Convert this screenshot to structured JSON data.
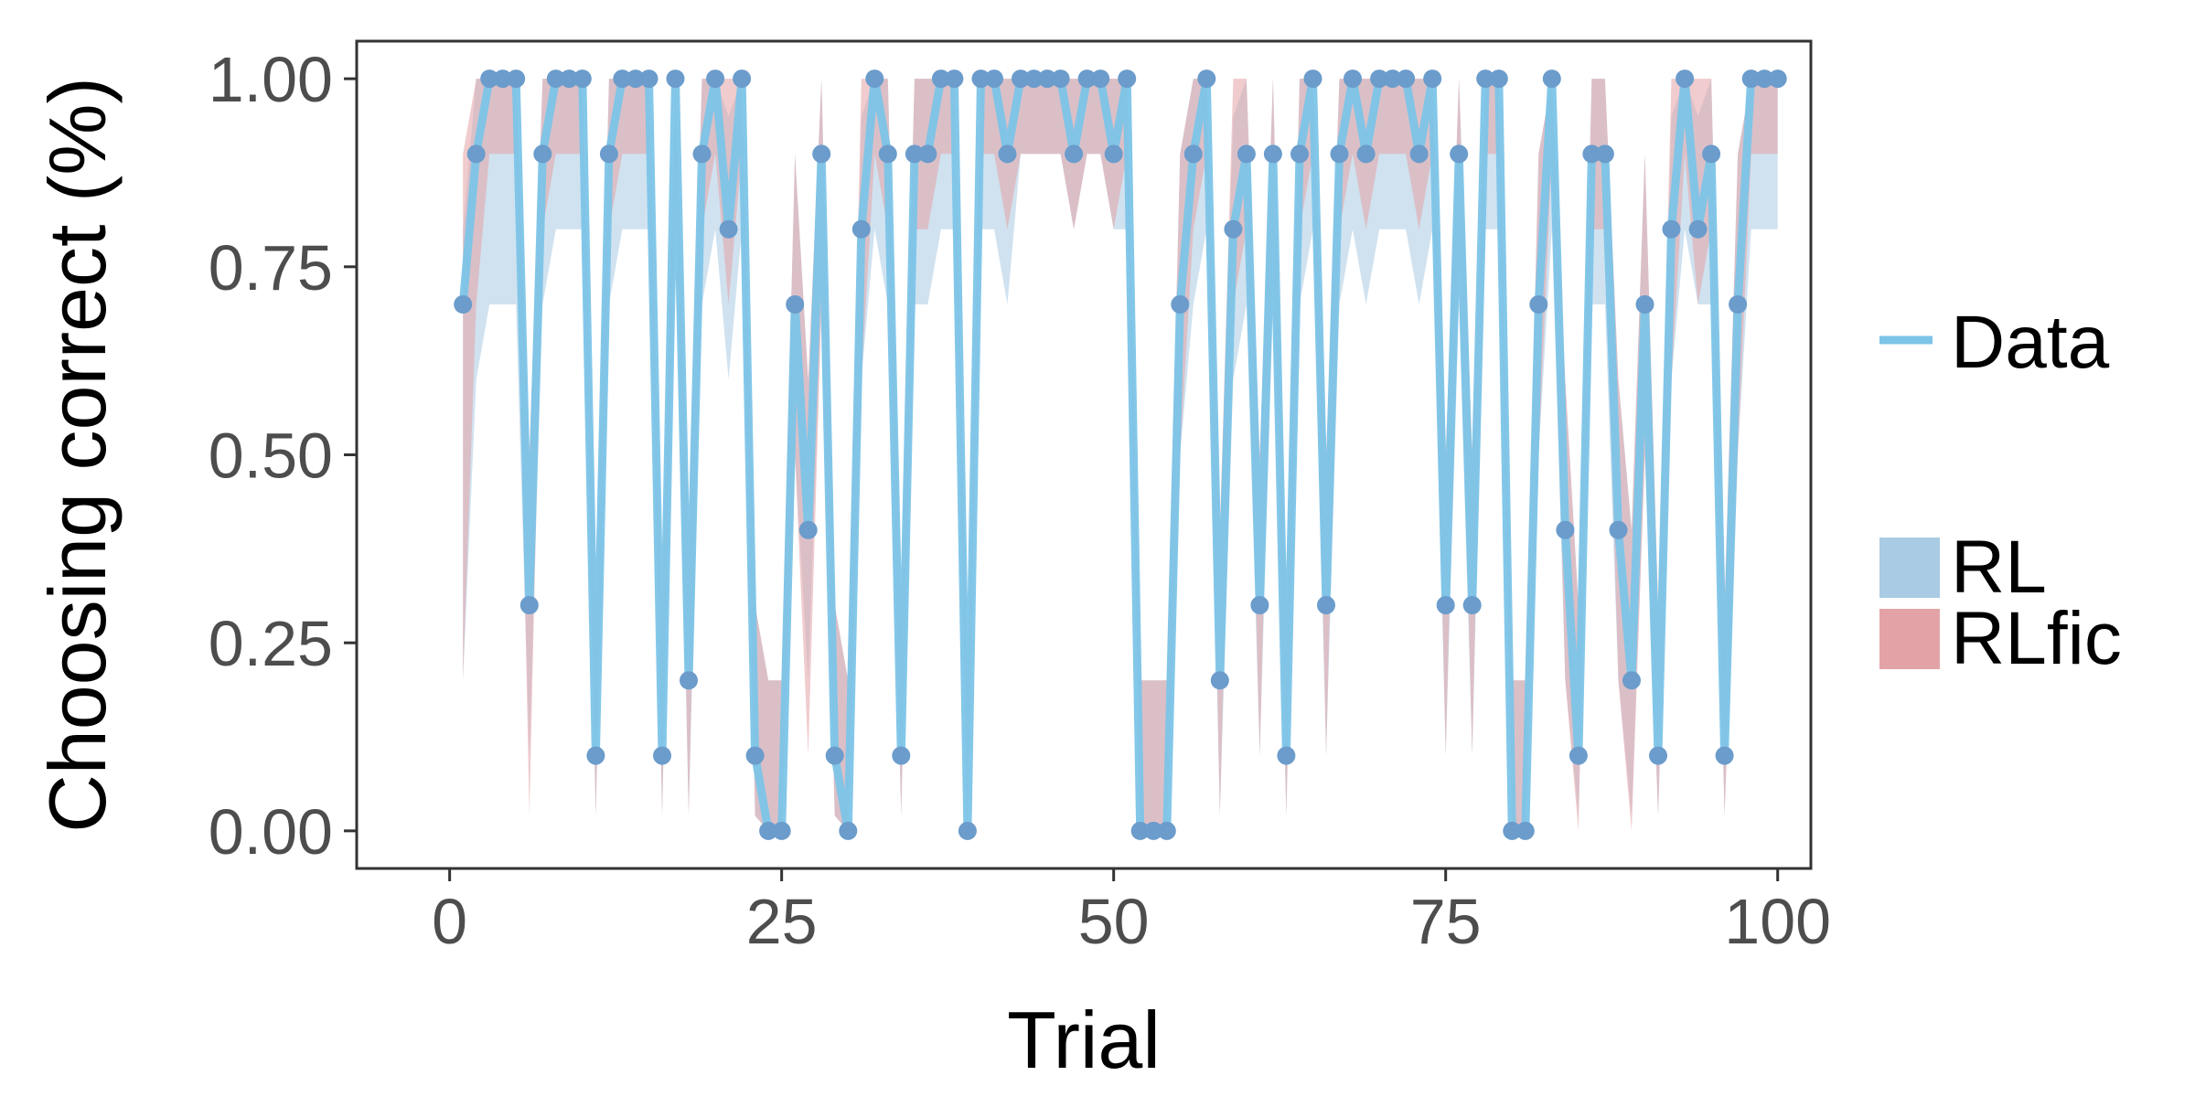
{
  "chart_data": {
    "type": "line",
    "xlabel": "Trial",
    "ylabel": "Choosing correct (%)",
    "xlim": [
      -7,
      102.5
    ],
    "ylim": [
      -0.05,
      1.05
    ],
    "x_ticks": [
      0,
      25,
      50,
      75,
      100
    ],
    "x_tick_labels": [
      "0",
      "25",
      "50",
      "75",
      "100"
    ],
    "y_ticks": [
      0,
      0.25,
      0.5,
      0.75,
      1.0
    ],
    "y_tick_labels": [
      "0.00",
      "0.25",
      "0.50",
      "0.75",
      "1.00"
    ],
    "grid": false,
    "legend_position": "right",
    "x": [
      1,
      2,
      3,
      4,
      5,
      6,
      7,
      8,
      9,
      10,
      11,
      12,
      13,
      14,
      15,
      16,
      17,
      18,
      19,
      20,
      21,
      22,
      23,
      24,
      25,
      26,
      27,
      28,
      29,
      30,
      31,
      32,
      33,
      34,
      35,
      36,
      37,
      38,
      39,
      40,
      41,
      42,
      43,
      44,
      45,
      46,
      47,
      48,
      49,
      50,
      51,
      52,
      53,
      54,
      55,
      56,
      57,
      58,
      59,
      60,
      61,
      62,
      63,
      64,
      65,
      66,
      67,
      68,
      69,
      70,
      71,
      72,
      73,
      74,
      75,
      76,
      77,
      78,
      79,
      80,
      81,
      82,
      83,
      84,
      85,
      86,
      87,
      88,
      89,
      90,
      91,
      92,
      93,
      94,
      95,
      96,
      97,
      98,
      99,
      100
    ],
    "series": [
      {
        "name": "Data",
        "kind": "line+points",
        "color": "#7cc4e8",
        "point_color": "#6b9ccb",
        "values": [
          0.7,
          0.9,
          1.0,
          1.0,
          1.0,
          0.3,
          0.9,
          1.0,
          1.0,
          1.0,
          0.1,
          0.9,
          1.0,
          1.0,
          1.0,
          0.1,
          1.0,
          0.2,
          0.9,
          1.0,
          0.8,
          1.0,
          0.1,
          0.0,
          0.0,
          0.7,
          0.4,
          0.9,
          0.1,
          0.0,
          0.8,
          1.0,
          0.9,
          0.1,
          0.9,
          0.9,
          1.0,
          1.0,
          0.0,
          1.0,
          1.0,
          0.9,
          1.0,
          1.0,
          1.0,
          1.0,
          0.9,
          1.0,
          1.0,
          0.9,
          1.0,
          0.0,
          0.0,
          0.0,
          0.7,
          0.9,
          1.0,
          0.2,
          0.8,
          0.9,
          0.3,
          0.9,
          0.1,
          0.9,
          1.0,
          0.3,
          0.9,
          1.0,
          0.9,
          1.0,
          1.0,
          1.0,
          0.9,
          1.0,
          0.3,
          0.9,
          0.3,
          1.0,
          1.0,
          0.0,
          0.0,
          0.7,
          1.0,
          0.4,
          0.1,
          0.9,
          0.9,
          0.4,
          0.2,
          0.7,
          0.1,
          0.8,
          1.0,
          0.8,
          0.9,
          0.1,
          0.7,
          1.0,
          1.0,
          1.0
        ]
      },
      {
        "name": "RL",
        "kind": "ribbon",
        "color": "#a9cbe3",
        "lower": [
          0.2,
          0.6,
          0.7,
          0.7,
          0.7,
          0.1,
          0.7,
          0.8,
          0.8,
          0.8,
          0.02,
          0.7,
          0.8,
          0.8,
          0.8,
          0.02,
          0.8,
          0.02,
          0.7,
          0.8,
          0.6,
          0.8,
          0.02,
          0.0,
          0.0,
          0.5,
          0.2,
          0.7,
          0.02,
          0.0,
          0.6,
          0.8,
          0.7,
          0.02,
          0.7,
          0.7,
          0.8,
          0.8,
          0.0,
          0.8,
          0.8,
          0.7,
          0.9,
          0.9,
          0.9,
          0.9,
          0.8,
          0.9,
          0.9,
          0.8,
          0.8,
          0.0,
          0.0,
          0.0,
          0.5,
          0.7,
          0.8,
          0.02,
          0.6,
          0.7,
          0.1,
          0.7,
          0.02,
          0.7,
          0.8,
          0.1,
          0.7,
          0.8,
          0.7,
          0.8,
          0.8,
          0.8,
          0.7,
          0.8,
          0.1,
          0.7,
          0.1,
          0.8,
          0.8,
          0.0,
          0.0,
          0.5,
          0.8,
          0.2,
          0.02,
          0.7,
          0.7,
          0.2,
          0.02,
          0.5,
          0.02,
          0.6,
          0.8,
          0.7,
          0.7,
          0.02,
          0.5,
          0.8,
          0.8,
          0.8
        ],
        "upper": [
          0.8,
          1.0,
          1.0,
          1.0,
          1.0,
          0.5,
          1.0,
          1.0,
          1.0,
          1.0,
          0.3,
          1.0,
          1.0,
          1.0,
          1.0,
          0.3,
          1.0,
          0.4,
          1.0,
          1.0,
          0.95,
          1.0,
          0.3,
          0.2,
          0.2,
          0.9,
          0.6,
          1.0,
          0.3,
          0.2,
          0.95,
          1.0,
          1.0,
          0.3,
          1.0,
          1.0,
          1.0,
          1.0,
          0.2,
          1.0,
          1.0,
          1.0,
          1.0,
          1.0,
          1.0,
          1.0,
          1.0,
          1.0,
          1.0,
          1.0,
          1.0,
          0.2,
          0.2,
          0.2,
          0.9,
          1.0,
          1.0,
          0.4,
          0.95,
          1.0,
          0.5,
          1.0,
          0.3,
          1.0,
          1.0,
          0.5,
          1.0,
          1.0,
          1.0,
          1.0,
          1.0,
          1.0,
          1.0,
          1.0,
          0.5,
          1.0,
          0.5,
          1.0,
          1.0,
          0.2,
          0.2,
          0.9,
          1.0,
          0.6,
          0.3,
          1.0,
          1.0,
          0.6,
          0.4,
          0.9,
          0.3,
          0.95,
          1.0,
          0.95,
          1.0,
          0.3,
          0.9,
          1.0,
          1.0,
          1.0
        ]
      },
      {
        "name": "RLfic",
        "kind": "ribbon",
        "color": "#e3a3a6",
        "lower": [
          0.2,
          0.7,
          0.9,
          0.9,
          0.9,
          0.02,
          0.8,
          0.9,
          0.9,
          0.9,
          0.02,
          0.8,
          0.9,
          0.9,
          0.9,
          0.02,
          0.9,
          0.02,
          0.8,
          0.9,
          0.7,
          0.9,
          0.02,
          0.0,
          0.0,
          0.5,
          0.1,
          0.7,
          0.02,
          0.0,
          0.6,
          0.9,
          0.8,
          0.02,
          0.8,
          0.8,
          0.9,
          0.9,
          0.0,
          0.9,
          0.9,
          0.8,
          0.9,
          0.9,
          0.9,
          0.9,
          0.8,
          0.9,
          0.9,
          0.8,
          0.9,
          0.0,
          0.0,
          0.0,
          0.5,
          0.8,
          0.9,
          0.02,
          0.7,
          0.8,
          0.1,
          0.8,
          0.02,
          0.8,
          0.9,
          0.1,
          0.8,
          0.9,
          0.8,
          0.9,
          0.9,
          0.9,
          0.8,
          0.9,
          0.1,
          0.8,
          0.1,
          0.9,
          0.9,
          0.0,
          0.0,
          0.5,
          0.9,
          0.2,
          0.0,
          0.8,
          0.8,
          0.2,
          0.0,
          0.5,
          0.02,
          0.6,
          0.9,
          0.7,
          0.8,
          0.02,
          0.5,
          0.9,
          0.9,
          0.9
        ],
        "upper": [
          0.9,
          1.0,
          1.0,
          1.0,
          1.0,
          0.5,
          1.0,
          1.0,
          1.0,
          1.0,
          0.3,
          1.0,
          1.0,
          1.0,
          1.0,
          0.3,
          1.0,
          0.4,
          1.0,
          1.0,
          1.0,
          1.0,
          0.3,
          0.2,
          0.2,
          0.9,
          0.6,
          1.0,
          0.3,
          0.2,
          1.0,
          1.0,
          1.0,
          0.3,
          1.0,
          1.0,
          1.0,
          1.0,
          0.2,
          1.0,
          1.0,
          1.0,
          1.0,
          1.0,
          1.0,
          1.0,
          1.0,
          1.0,
          1.0,
          1.0,
          1.0,
          0.2,
          0.2,
          0.2,
          0.9,
          1.0,
          1.0,
          0.4,
          1.0,
          1.0,
          0.5,
          1.0,
          0.3,
          1.0,
          1.0,
          0.5,
          1.0,
          1.0,
          1.0,
          1.0,
          1.0,
          1.0,
          1.0,
          1.0,
          0.5,
          1.0,
          0.5,
          1.0,
          1.0,
          0.2,
          0.2,
          0.9,
          1.0,
          0.6,
          0.3,
          1.0,
          1.0,
          0.6,
          0.4,
          0.9,
          0.3,
          1.0,
          1.0,
          1.0,
          1.0,
          0.3,
          0.9,
          1.0,
          1.0,
          1.0
        ]
      }
    ],
    "legend": {
      "line_entries": [
        "Data"
      ],
      "ribbon_entries": [
        "RL",
        "RLfic"
      ]
    }
  }
}
